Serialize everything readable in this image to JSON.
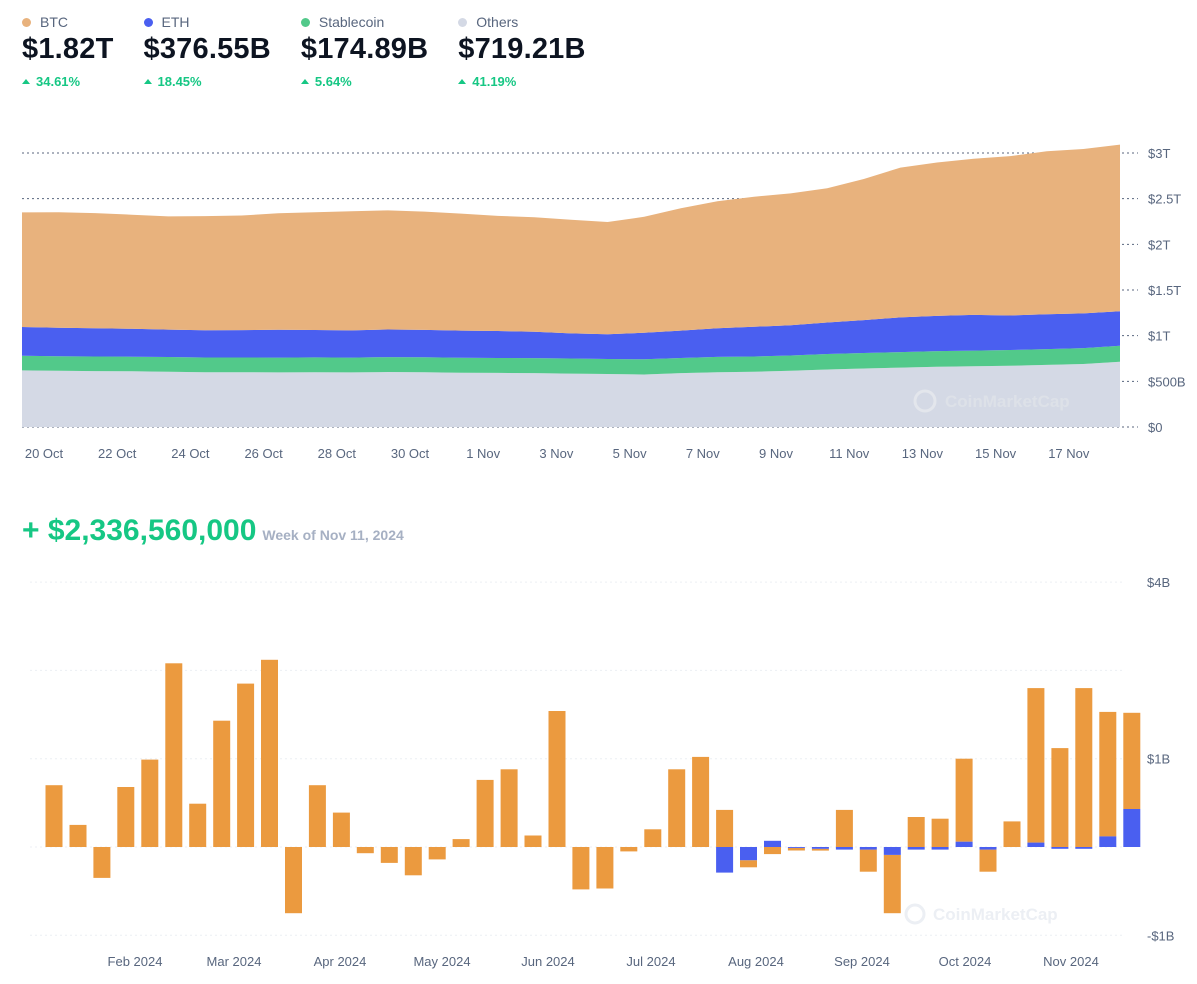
{
  "legend": [
    {
      "name": "BTC",
      "value": "$1.82T",
      "change": "34.61%",
      "color": "#e8b27d"
    },
    {
      "name": "ETH",
      "value": "$376.55B",
      "change": "18.45%",
      "color": "#4a5ff0"
    },
    {
      "name": "Stablecoin",
      "value": "$174.89B",
      "change": "5.64%",
      "color": "#52c98a"
    },
    {
      "name": "Others",
      "value": "$719.21B",
      "change": "41.19%",
      "color": "#d4d9e5"
    }
  ],
  "flow_header": {
    "amount": "+ $2,336,560,000",
    "week": "Week of Nov 11, 2024"
  },
  "watermark": "CoinMarketCap",
  "chart_data": [
    {
      "type": "area",
      "stacked": true,
      "x_tick_labels": [
        "20 Oct",
        "22 Oct",
        "24 Oct",
        "26 Oct",
        "28 Oct",
        "30 Oct",
        "1 Nov",
        "3 Nov",
        "5 Nov",
        "7 Nov",
        "9 Nov",
        "11 Nov",
        "13 Nov",
        "15 Nov",
        "17 Nov"
      ],
      "y_tick_labels": [
        "$3T",
        "$2.5T",
        "$2T",
        "$1.5T",
        "$1T",
        "$500B",
        "$0"
      ],
      "ylim": [
        0,
        3000
      ],
      "y_unit": "billions USD",
      "grid": true,
      "legend_position": "top",
      "x_days": [
        0,
        1,
        2,
        3,
        4,
        5,
        6,
        7,
        8,
        9,
        10,
        11,
        12,
        13,
        14,
        15,
        16,
        17,
        18,
        19,
        20,
        21,
        22,
        23,
        24,
        25,
        26,
        27,
        28,
        29,
        30
      ],
      "series": [
        {
          "name": "Others",
          "color": "#d4d9e5",
          "values": [
            620,
            615,
            612,
            610,
            605,
            600,
            600,
            598,
            600,
            598,
            602,
            600,
            595,
            592,
            590,
            585,
            580,
            575,
            590,
            600,
            605,
            615,
            630,
            640,
            650,
            660,
            665,
            670,
            680,
            690,
            715
          ]
        },
        {
          "name": "Stablecoin",
          "color": "#52c98a",
          "values": [
            160,
            160,
            160,
            160,
            161,
            161,
            161,
            162,
            162,
            162,
            163,
            163,
            163,
            164,
            164,
            165,
            165,
            166,
            166,
            167,
            167,
            168,
            169,
            170,
            170,
            171,
            172,
            173,
            173,
            174,
            175
          ]
        },
        {
          "name": "ETH",
          "color": "#4a5ff0",
          "values": [
            315,
            312,
            310,
            305,
            300,
            298,
            300,
            305,
            300,
            298,
            302,
            300,
            298,
            295,
            288,
            275,
            270,
            290,
            300,
            315,
            325,
            330,
            345,
            360,
            380,
            385,
            390,
            378,
            382,
            380,
            377
          ]
        },
        {
          "name": "BTC",
          "color": "#e8b27d",
          "values": [
            1255,
            1265,
            1260,
            1250,
            1240,
            1250,
            1255,
            1275,
            1290,
            1305,
            1305,
            1295,
            1280,
            1260,
            1255,
            1245,
            1230,
            1270,
            1340,
            1390,
            1425,
            1445,
            1470,
            1545,
            1640,
            1680,
            1710,
            1745,
            1785,
            1800,
            1825
          ]
        }
      ]
    },
    {
      "type": "bar",
      "stacked": true,
      "x_tick_labels": [
        "Feb 2024",
        "Mar 2024",
        "Apr 2024",
        "May 2024",
        "Jun 2024",
        "Jul 2024",
        "Aug 2024",
        "Sep 2024",
        "Oct 2024",
        "Nov 2024"
      ],
      "y_tick_labels": [
        "$4B",
        "$1B",
        "-$1B"
      ],
      "ylim": [
        -1,
        3
      ],
      "y_unit": "billions USD",
      "grid": true,
      "series": [
        {
          "name": "BTC",
          "color": "#eb9a3f",
          "values": [
            0.7,
            0.25,
            -0.35,
            0.68,
            0.99,
            2.08,
            0.49,
            1.43,
            1.85,
            2.12,
            -0.75,
            0.7,
            0.39,
            -0.07,
            -0.18,
            -0.32,
            -0.14,
            0.09,
            0.76,
            0.88,
            0.13,
            1.54,
            -0.48,
            -0.47,
            -0.05,
            0.2,
            0.88,
            1.02,
            0.42,
            -0.08,
            -0.08,
            -0.03,
            -0.02,
            0.42,
            -0.25,
            -0.66,
            0.34,
            0.32,
            0.94,
            -0.25,
            0.29,
            1.75,
            1.12,
            1.8,
            1.41,
            1.09
          ]
        },
        {
          "name": "ETH",
          "color": "#4a5ff0",
          "values": [
            0,
            0,
            0,
            0,
            0,
            0,
            0,
            0,
            0,
            0,
            0,
            0,
            0,
            0,
            0,
            0,
            0,
            0,
            0,
            0,
            0,
            0,
            0,
            0,
            0,
            0,
            0,
            0,
            -0.29,
            -0.15,
            0.07,
            -0.01,
            -0.02,
            -0.03,
            -0.03,
            -0.09,
            -0.03,
            -0.03,
            0.06,
            -0.03,
            0,
            0.05,
            -0.02,
            -0.02,
            0.12,
            0.43
          ]
        }
      ]
    }
  ]
}
